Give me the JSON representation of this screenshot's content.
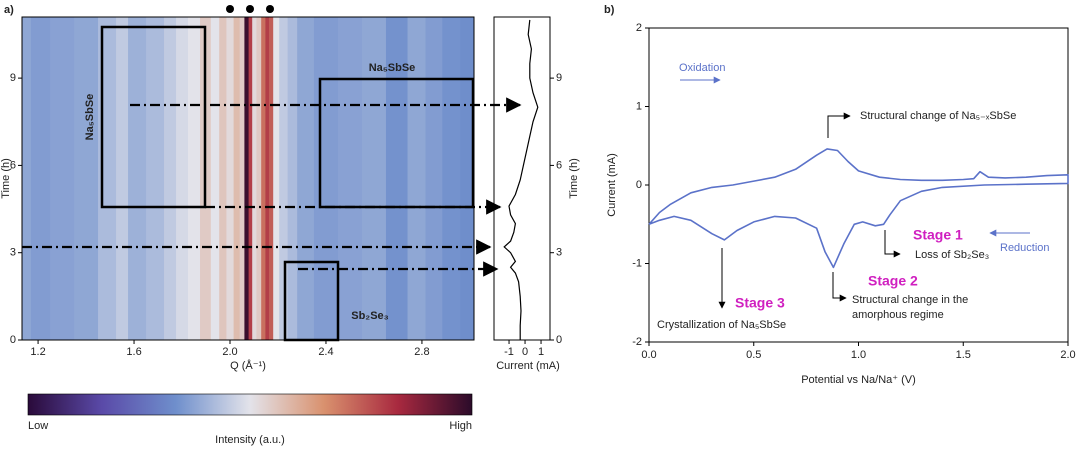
{
  "chart_data": [
    {
      "type": "heatmap",
      "panel_label": "a)",
      "x_label": "Q (Å⁻¹)",
      "y_label": "Time (h)",
      "xlim": [
        1.133,
        3.017
      ],
      "ylim": [
        0,
        11.1
      ],
      "xticks": [
        1.2,
        1.6,
        {
          "value": 2,
          "label": "2.0"
        },
        2.4,
        2.8
      ],
      "yticks": [
        0,
        3,
        6,
        9
      ],
      "x": [
        1.14,
        1.2,
        1.3,
        1.4,
        1.5,
        1.55,
        1.6,
        1.7,
        1.75,
        1.8,
        1.85,
        1.9,
        1.94,
        1.97,
        2.0,
        2.03,
        2.05,
        2.07,
        2.085,
        2.1,
        2.12,
        2.14,
        2.155,
        2.17,
        2.19,
        2.22,
        2.26,
        2.3,
        2.4,
        2.5,
        2.6,
        2.7,
        2.78,
        2.85,
        2.92,
        3.0
      ],
      "values": [
        0.38,
        0.36,
        0.37,
        0.38,
        0.42,
        0.45,
        0.4,
        0.42,
        0.45,
        0.48,
        0.5,
        0.55,
        0.5,
        0.56,
        0.52,
        0.58,
        0.55,
        0.98,
        0.8,
        0.52,
        0.55,
        0.72,
        0.8,
        0.75,
        0.5,
        0.45,
        0.42,
        0.38,
        0.36,
        0.37,
        0.38,
        0.34,
        0.38,
        0.36,
        0.34,
        0.33
      ],
      "colormap": [
        "#2a0a3a",
        "#5a4aa8",
        "#6f8fcc",
        "#e3e3ea",
        "#d9916e",
        "#a8293f",
        "#2b0b2a"
      ],
      "colorbar_label": "Intensity (a.u.)",
      "colorbar_low": "Low",
      "colorbar_high": "High",
      "annotations": [
        "Na₅SbSe",
        "Na₅SbSe",
        "Sb₂Se₃"
      ]
    },
    {
      "type": "line",
      "orientation": "horizontal",
      "x_label": "Current (mA)",
      "y_label": "Time (h)",
      "xlim": [
        0,
        11.1
      ],
      "ylim": [
        -1.94,
        1.56
      ],
      "xticks": [
        0,
        3,
        6,
        9
      ],
      "yticks": [
        -1,
        0,
        1
      ],
      "color": "#000000",
      "x": [
        0,
        0.5,
        1,
        1.5,
        2,
        2.3,
        2.5,
        2.7,
        3,
        3.2,
        3.4,
        3.7,
        4,
        4.3,
        4.6,
        5,
        5.5,
        6,
        6.5,
        7,
        7.5,
        8,
        8.5,
        9,
        9.5,
        10,
        10.5,
        11
      ],
      "values": [
        -0.3,
        -0.3,
        -0.25,
        -0.3,
        -0.4,
        -0.6,
        -0.9,
        -0.6,
        -0.9,
        -1.3,
        -0.9,
        -0.7,
        -0.6,
        -0.9,
        -1.0,
        -0.6,
        -0.3,
        -0.1,
        0.1,
        0.3,
        0.5,
        0.8,
        0.5,
        0.3,
        0.3,
        0.4,
        0.2,
        0.3
      ]
    },
    {
      "type": "line",
      "panel_label": "b)",
      "x_label": "Potential vs Na/Na⁺ (V)",
      "y_label": "Current (mA)",
      "xlim": [
        0,
        2
      ],
      "ylim": [
        -2,
        2
      ],
      "xticks": [
        {
          "value": 0,
          "label": "0.0"
        },
        0.5,
        {
          "value": 1,
          "label": "1.0"
        },
        1.5,
        {
          "value": 2,
          "label": "2.0"
        }
      ],
      "yticks": [
        -2,
        -1,
        0,
        1,
        2
      ],
      "color": "#5b72c9",
      "x": [
        0,
        0.05,
        0.1,
        0.2,
        0.3,
        0.4,
        0.5,
        0.6,
        0.7,
        0.8,
        0.85,
        0.9,
        0.95,
        1.0,
        1.1,
        1.2,
        1.3,
        1.4,
        1.5,
        1.55,
        1.58,
        1.62,
        1.7,
        1.8,
        1.9,
        2.0,
        2.0,
        1.8,
        1.6,
        1.4,
        1.3,
        1.2,
        1.15,
        1.12,
        1.08,
        1.02,
        0.98,
        0.93,
        0.88,
        0.84,
        0.8,
        0.7,
        0.6,
        0.5,
        0.42,
        0.36,
        0.3,
        0.2,
        0.12,
        0.05,
        0
      ],
      "values": [
        -0.5,
        -0.35,
        -0.25,
        -0.1,
        -0.03,
        0,
        0.05,
        0.1,
        0.2,
        0.38,
        0.46,
        0.44,
        0.3,
        0.18,
        0.1,
        0.07,
        0.06,
        0.06,
        0.07,
        0.08,
        0.17,
        0.1,
        0.09,
        0.1,
        0.12,
        0.13,
        0.02,
        0.01,
        0,
        -0.03,
        -0.08,
        -0.2,
        -0.38,
        -0.5,
        -0.52,
        -0.47,
        -0.5,
        -0.75,
        -1.05,
        -0.85,
        -0.55,
        -0.42,
        -0.4,
        -0.47,
        -0.58,
        -0.7,
        -0.62,
        -0.45,
        -0.4,
        -0.45,
        -0.5
      ],
      "annotations": [
        "Oxidation",
        "Reduction",
        "Structural change of Na₅₋ₓSbSe",
        "Stage 1",
        "Loss of Sb₂Se₃",
        "Stage 2",
        "Structural change in the",
        "amorphous regime",
        "Stage 3",
        "Crystallization of Na₅SbSe"
      ]
    }
  ]
}
